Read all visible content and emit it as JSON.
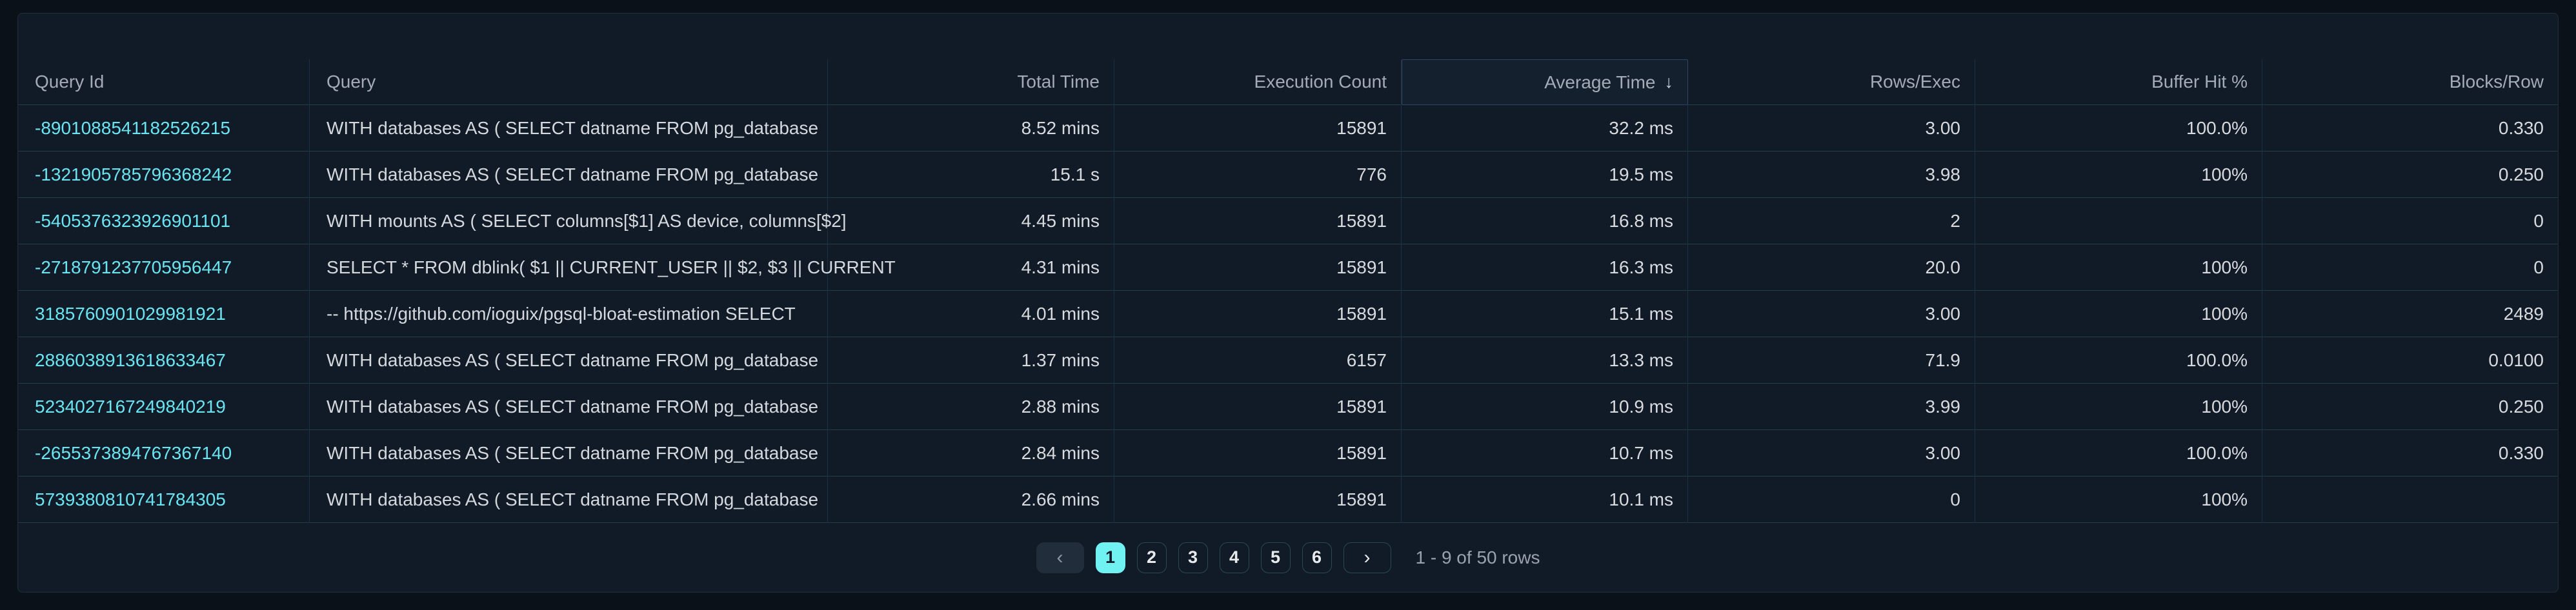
{
  "panel": {
    "table": {
      "columns": [
        {
          "key": "query_id",
          "label": "Query Id",
          "align": "left"
        },
        {
          "key": "query",
          "label": "Query",
          "align": "left"
        },
        {
          "key": "total_time",
          "label": "Total Time",
          "align": "right"
        },
        {
          "key": "execution_count",
          "label": "Execution Count",
          "align": "right"
        },
        {
          "key": "average_time",
          "label": "Average Time",
          "align": "right",
          "sorted": "desc",
          "sort_icon": "↓"
        },
        {
          "key": "rows_per_exec",
          "label": "Rows/Exec",
          "align": "right"
        },
        {
          "key": "buffer_hit_pct",
          "label": "Buffer Hit %",
          "align": "right"
        },
        {
          "key": "blocks_per_row",
          "label": "Blocks/Row",
          "align": "right"
        }
      ],
      "rows": [
        {
          "query_id": "-8901088541182526215",
          "query": "WITH databases AS ( SELECT datname FROM pg_database",
          "total_time": "8.52 mins",
          "execution_count": "15891",
          "average_time": "32.2 ms",
          "rows_per_exec": "3.00",
          "buffer_hit_pct": "100.0%",
          "blocks_per_row": "0.330"
        },
        {
          "query_id": "-1321905785796368242",
          "query": "WITH databases AS ( SELECT datname FROM pg_database",
          "total_time": "15.1 s",
          "execution_count": "776",
          "average_time": "19.5 ms",
          "rows_per_exec": "3.98",
          "buffer_hit_pct": "100%",
          "blocks_per_row": "0.250"
        },
        {
          "query_id": "-5405376323926901101",
          "query": "WITH mounts AS ( SELECT columns[$1] AS device, columns[$2]",
          "total_time": "4.45 mins",
          "execution_count": "15891",
          "average_time": "16.8 ms",
          "rows_per_exec": "2",
          "buffer_hit_pct": "",
          "blocks_per_row": "0"
        },
        {
          "query_id": "-2718791237705956447",
          "query": "SELECT * FROM dblink( $1 || CURRENT_USER || $2, $3 || CURRENT",
          "total_time": "4.31 mins",
          "execution_count": "15891",
          "average_time": "16.3 ms",
          "rows_per_exec": "20.0",
          "buffer_hit_pct": "100%",
          "blocks_per_row": "0"
        },
        {
          "query_id": "3185760901029981921",
          "query": "-- https://github.com/ioguix/pgsql-bloat-estimation SELECT",
          "total_time": "4.01 mins",
          "execution_count": "15891",
          "average_time": "15.1 ms",
          "rows_per_exec": "3.00",
          "buffer_hit_pct": "100%",
          "blocks_per_row": "2489"
        },
        {
          "query_id": "2886038913618633467",
          "query": "WITH databases AS ( SELECT datname FROM pg_database",
          "total_time": "1.37 mins",
          "execution_count": "6157",
          "average_time": "13.3 ms",
          "rows_per_exec": "71.9",
          "buffer_hit_pct": "100.0%",
          "blocks_per_row": "0.0100"
        },
        {
          "query_id": "5234027167249840219",
          "query": "WITH databases AS ( SELECT datname FROM pg_database",
          "total_time": "2.88 mins",
          "execution_count": "15891",
          "average_time": "10.9 ms",
          "rows_per_exec": "3.99",
          "buffer_hit_pct": "100%",
          "blocks_per_row": "0.250"
        },
        {
          "query_id": "-2655373894767367140",
          "query": "WITH databases AS ( SELECT datname FROM pg_database",
          "total_time": "2.84 mins",
          "execution_count": "15891",
          "average_time": "10.7 ms",
          "rows_per_exec": "3.00",
          "buffer_hit_pct": "100.0%",
          "blocks_per_row": "0.330"
        },
        {
          "query_id": "5739380810741784305",
          "query": "WITH databases AS ( SELECT datname FROM pg_database",
          "total_time": "2.66 mins",
          "execution_count": "15891",
          "average_time": "10.1 ms",
          "rows_per_exec": "0",
          "buffer_hit_pct": "100%",
          "blocks_per_row": ""
        }
      ]
    },
    "pagination": {
      "prev_icon": "‹",
      "next_icon": "›",
      "pages": [
        "1",
        "2",
        "3",
        "4",
        "5",
        "6"
      ],
      "active_page": "1",
      "summary": "1 - 9 of 50 rows"
    },
    "colors": {
      "page_background": "#0b1118",
      "panel_background": "#111b27",
      "link_cyan": "#6be4f1",
      "active_page_cyan": "#70f2f2",
      "row_divider": "#1f3e48",
      "column_divider": "#1b2f3e",
      "sorted_header_border": "#2e4566"
    }
  }
}
